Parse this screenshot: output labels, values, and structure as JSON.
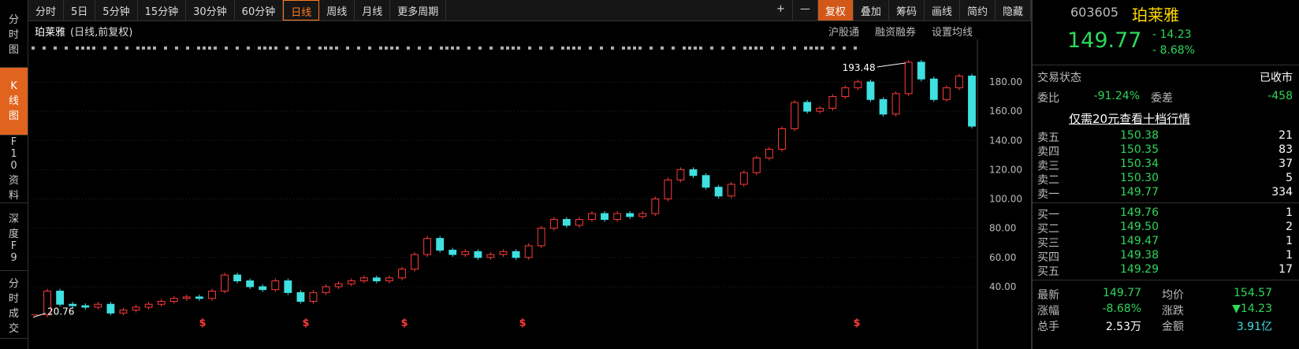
{
  "toolbar": {
    "periods": [
      "分时",
      "5日",
      "5分钟",
      "15分钟",
      "30分钟",
      "60分钟",
      "日线",
      "周线",
      "月线",
      "更多周期"
    ],
    "active": "日线",
    "tools": [
      "+",
      "—",
      "复权",
      "叠加",
      "筹码",
      "画线",
      "简约",
      "隐藏"
    ]
  },
  "side_tabs": [
    "分时图",
    "K线图",
    "F10资料",
    "深度F9",
    "分时成交"
  ],
  "chart_header": {
    "name": "珀莱雅",
    "mode": "(日线,前复权)",
    "links": [
      "沪股通",
      "融资融券",
      "设置均线"
    ]
  },
  "chart_data": {
    "type": "candlestick",
    "values": [
      20.76,
      37,
      28,
      27,
      26,
      28,
      22,
      24,
      26,
      28,
      30,
      32,
      33,
      32,
      37,
      48,
      44,
      40,
      38,
      44,
      36,
      30,
      36,
      40,
      42,
      44,
      46,
      44,
      46,
      52,
      62,
      73,
      65,
      62,
      64,
      60,
      62,
      64,
      60,
      68,
      80,
      86,
      82,
      86,
      90,
      86,
      90,
      88,
      90,
      100,
      113,
      120,
      116,
      108,
      102,
      110,
      118,
      128,
      134,
      148,
      166,
      160,
      162,
      170,
      176,
      180,
      168,
      158,
      172,
      193.48,
      182,
      168,
      176,
      184,
      149.77
    ],
    "ylim": [
      9.8,
      194
    ],
    "yticks": [
      {
        "value": 40,
        "label": "40.00"
      },
      {
        "value": 60,
        "label": "60.00"
      },
      {
        "value": 80,
        "label": "80.00"
      },
      {
        "value": 100,
        "label": "100.00"
      },
      {
        "value": 120,
        "label": "120.00"
      },
      {
        "value": 140,
        "label": "140.00"
      },
      {
        "value": 160,
        "label": "160.00"
      },
      {
        "value": 180,
        "label": "180.00"
      }
    ],
    "max_label": 193.48,
    "min_label": 20.76,
    "event_markers": [
      "$",
      "$",
      "$",
      "$",
      "$"
    ],
    "up_color": "#ff3b3b",
    "down_color": "#3fe0e0"
  },
  "quote": {
    "code": "603605",
    "name": "珀莱雅",
    "price": "149.77",
    "change": "- 14.23",
    "pct": "- 8.68%",
    "status_label": "交易状态",
    "status": "已收市",
    "wb_label": "委比",
    "wb": "-91.24%",
    "wc_label": "委差",
    "wc": "-458",
    "promo": "仅需20元查看十档行情",
    "sell": [
      [
        "卖五",
        "150.38",
        "21"
      ],
      [
        "卖四",
        "150.35",
        "83"
      ],
      [
        "卖三",
        "150.34",
        "37"
      ],
      [
        "卖二",
        "150.30",
        "5"
      ],
      [
        "卖一",
        "149.77",
        "334"
      ]
    ],
    "buy": [
      [
        "买一",
        "149.76",
        "1"
      ],
      [
        "买二",
        "149.50",
        "2"
      ],
      [
        "买三",
        "149.47",
        "1"
      ],
      [
        "买四",
        "149.38",
        "1"
      ],
      [
        "买五",
        "149.29",
        "17"
      ]
    ],
    "stats": [
      [
        "最新",
        "149.77",
        "均价",
        "154.57"
      ],
      [
        "涨幅",
        "-8.68%",
        "涨跌",
        "▼14.23"
      ],
      [
        "总手",
        "2.53万",
        "金额",
        "3.91亿"
      ]
    ]
  }
}
